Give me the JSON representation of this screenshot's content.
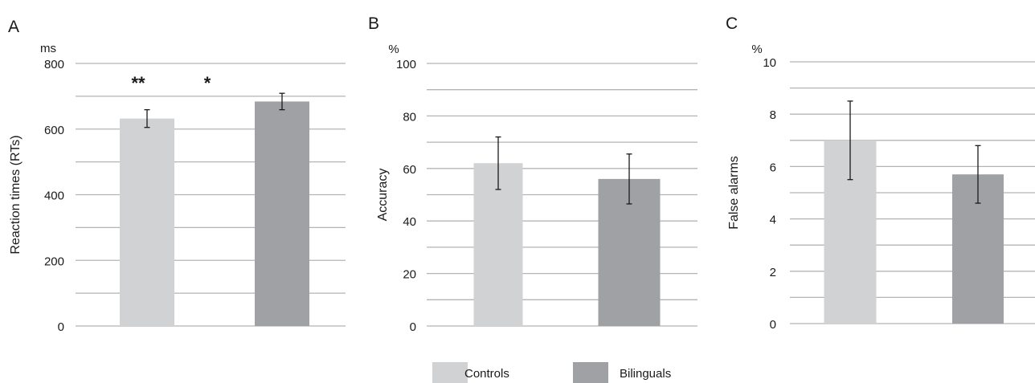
{
  "legend": [
    {
      "label": "Controls",
      "color": "#d1d2d4"
    },
    {
      "label": "Bilinguals",
      "color": "#a0a1a5"
    }
  ],
  "chart_data": [
    {
      "type": "bar",
      "panel": "A",
      "unit": "ms",
      "ylabel": "Reaction times (RTs)",
      "ylim": [
        0,
        800
      ],
      "ticks": [
        0,
        200,
        400,
        600,
        800
      ],
      "grid": true,
      "categories": [
        "Controls",
        "Bilinguals"
      ],
      "series": [
        {
          "values": [
            632,
            684
          ],
          "errors": [
            27,
            25
          ]
        }
      ],
      "annotations": [
        "**",
        "*"
      ]
    },
    {
      "type": "bar",
      "panel": "B",
      "unit": "%",
      "ylabel": "Accuracy",
      "ylim": [
        0,
        100
      ],
      "ticks": [
        0,
        20,
        40,
        60,
        80,
        100
      ],
      "grid": true,
      "categories": [
        "Controls",
        "Bilinguals"
      ],
      "series": [
        {
          "values": [
            62,
            56
          ],
          "errors": [
            10,
            9.5
          ]
        }
      ]
    },
    {
      "type": "bar",
      "panel": "C",
      "unit": "%",
      "ylabel": "False alarms",
      "ylim": [
        0,
        10
      ],
      "ticks": [
        0,
        2,
        4,
        6,
        8,
        10
      ],
      "grid": true,
      "categories": [
        "Controls",
        "Bilinguals"
      ],
      "series": [
        {
          "values": [
            7,
            5.7
          ],
          "errors": [
            1.5,
            1.1
          ]
        }
      ]
    }
  ]
}
